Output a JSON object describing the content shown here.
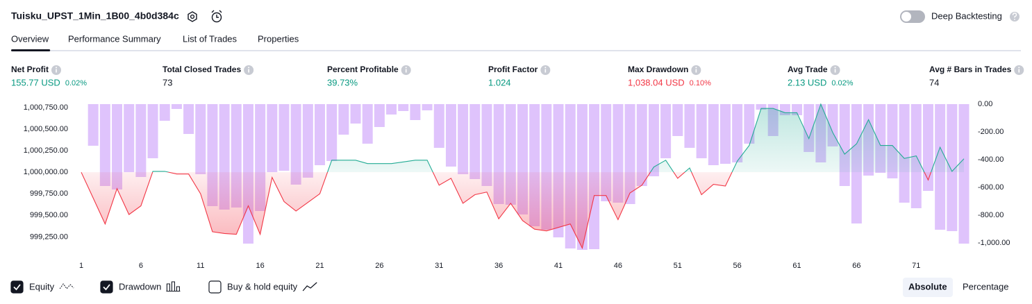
{
  "header": {
    "title": "Tuisku_UPST_1Min_1B00_4b0d384c",
    "deep_backtesting": {
      "label": "Deep Backtesting",
      "on": false
    }
  },
  "tabs": {
    "items": [
      "Overview",
      "Performance Summary",
      "List of Trades",
      "Properties"
    ],
    "active": 0
  },
  "metrics": [
    {
      "label": "Net Profit",
      "value": "155.77 USD",
      "extra": "0.02%",
      "tone": "positive"
    },
    {
      "label": "Total Closed Trades",
      "value": "73",
      "tone": "neutral"
    },
    {
      "label": "Percent Profitable",
      "value": "39.73%",
      "tone": "positive"
    },
    {
      "label": "Profit Factor",
      "value": "1.024",
      "tone": "positive"
    },
    {
      "label": "Max Drawdown",
      "value": "1,038.04 USD",
      "extra": "0.10%",
      "tone": "negative"
    },
    {
      "label": "Avg Trade",
      "value": "2.13 USD",
      "extra": "0.02%",
      "tone": "positive"
    },
    {
      "label": "Avg # Bars in Trades",
      "value": "74",
      "tone": "neutral"
    }
  ],
  "chart_data": {
    "type": "combo",
    "x": [
      1,
      2,
      3,
      4,
      5,
      6,
      7,
      8,
      9,
      10,
      11,
      12,
      13,
      14,
      15,
      16,
      17,
      18,
      19,
      20,
      21,
      22,
      23,
      24,
      25,
      26,
      27,
      28,
      29,
      30,
      31,
      32,
      33,
      34,
      35,
      36,
      37,
      38,
      39,
      40,
      41,
      42,
      43,
      44,
      45,
      46,
      47,
      48,
      49,
      50,
      51,
      52,
      53,
      54,
      55,
      56,
      57,
      58,
      59,
      60,
      61,
      62,
      63,
      64,
      65,
      66,
      67,
      68,
      69,
      70,
      71,
      72,
      73,
      74,
      75
    ],
    "xlim": [
      1,
      75
    ],
    "xticks": [
      1,
      6,
      11,
      16,
      21,
      26,
      31,
      36,
      41,
      46,
      51,
      56,
      61,
      66,
      71
    ],
    "ylim": [
      999100,
      1000790
    ],
    "yticks": [
      {
        "value": 1000750,
        "label": "1,000,750.00"
      },
      {
        "value": 1000500,
        "label": "1,000,500.00"
      },
      {
        "value": 1000250,
        "label": "1,000,250.00"
      },
      {
        "value": 1000000,
        "label": "1,000,000.00"
      },
      {
        "value": 999750,
        "label": "999,750.00"
      },
      {
        "value": 999500,
        "label": "999,500.00"
      },
      {
        "value": 999250,
        "label": "999,250.00"
      }
    ],
    "y2lim": [
      -1050,
      0
    ],
    "y2ticks": [
      {
        "value": 0,
        "label": "0.00"
      },
      {
        "value": -200,
        "label": "-200.00"
      },
      {
        "value": -400,
        "label": "-400.00"
      },
      {
        "value": -600,
        "label": "-600.00"
      },
      {
        "value": -800,
        "label": "-800.00"
      },
      {
        "value": -1000,
        "label": "-1,000.00"
      }
    ],
    "series": [
      {
        "name": "Equity",
        "visible": true,
        "axis": "y",
        "color": "#22ab94",
        "negative_color": "#f23645",
        "values": [
          1000000,
          999700,
          999400,
          999810,
          999510,
          999610,
          1000010,
          1000010,
          999980,
          999980,
          999750,
          999310,
          999290,
          999280,
          999610,
          999280,
          999940,
          999660,
          999550,
          999650,
          999750,
          1000140,
          1000140,
          1000140,
          1000100,
          1000100,
          1000100,
          1000120,
          1000140,
          1000140,
          999850,
          999930,
          999640,
          999740,
          999770,
          999460,
          999640,
          999440,
          999340,
          999320,
          999360,
          999400,
          999120,
          999730,
          999730,
          999450,
          999760,
          999850,
          1000060,
          1000140,
          999930,
          1000050,
          999740,
          999860,
          999840,
          1000130,
          1000310,
          1000740,
          1000740,
          1000690,
          1000690,
          1000390,
          1000790,
          1000460,
          1000210,
          1000330,
          1000610,
          1000310,
          1000310,
          1000160,
          1000190,
          999910,
          1000290,
          1000010,
          1000156
        ]
      },
      {
        "name": "Drawdown",
        "visible": true,
        "axis": "y2",
        "color": "#d9b8fb",
        "values": [
          null,
          -300,
          -590,
          -615,
          -490,
          -525,
          -390,
          -120,
          -35,
          -215,
          -505,
          -735,
          -760,
          -745,
          -1005,
          -770,
          -490,
          -480,
          -580,
          -530,
          -440,
          -410,
          -220,
          -140,
          -285,
          -165,
          -75,
          -50,
          -115,
          -45,
          -315,
          -450,
          -505,
          -540,
          -590,
          -720,
          -725,
          -795,
          -880,
          -905,
          -960,
          -1040,
          -1050,
          -1045,
          -700,
          -710,
          -720,
          -590,
          -520,
          -390,
          -230,
          -315,
          -390,
          -440,
          -430,
          -420,
          -285,
          -40,
          -230,
          -80,
          -80,
          -345,
          -420,
          -305,
          -590,
          -860,
          -515,
          -495,
          -535,
          -710,
          -750,
          -625,
          -905,
          -915,
          -1005
        ]
      }
    ]
  },
  "footer": {
    "buy_hold": {
      "label": "Buy & hold equity",
      "checked": false
    },
    "modes": [
      "Absolute",
      "Percentage"
    ],
    "active_mode": 0
  }
}
